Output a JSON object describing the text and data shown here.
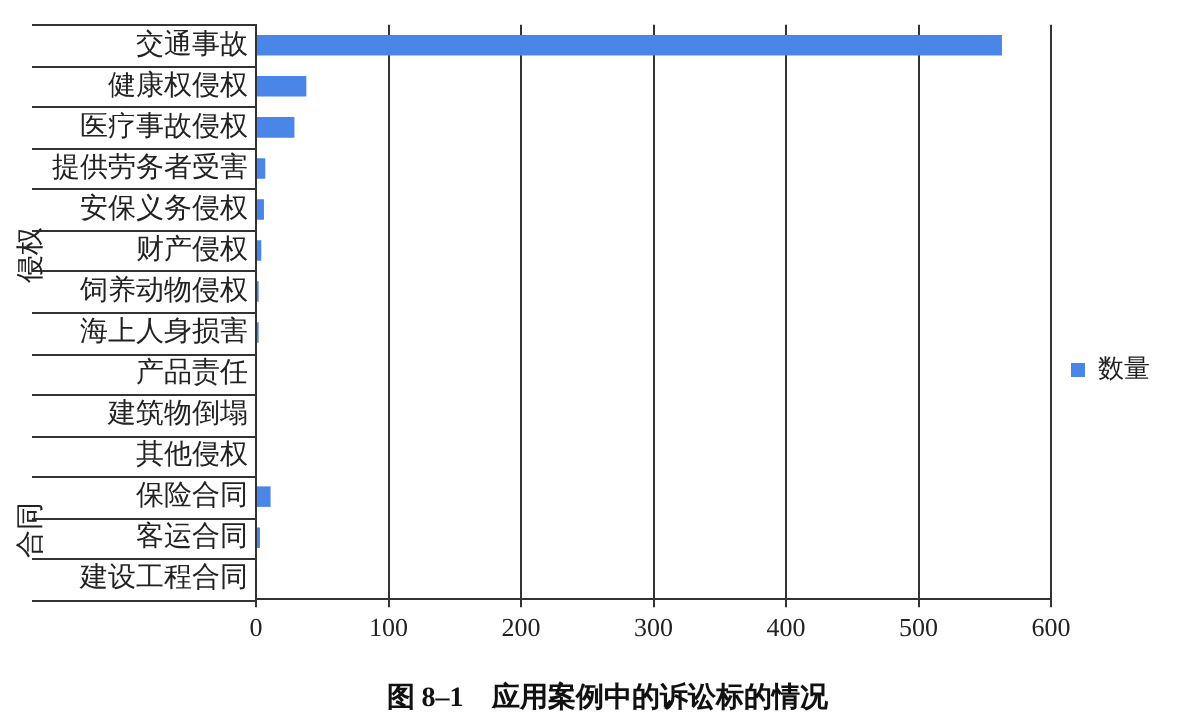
{
  "chart_data": {
    "type": "bar",
    "orientation": "horizontal",
    "title": "图 8–1　应用案例中的诉讼标的情况",
    "categories": [
      "交通事故",
      "健康权侵权",
      "医疗事故侵权",
      "提供劳务者受害",
      "安保义务侵权",
      "财产侵权",
      "饲养动物侵权",
      "海上人身损害",
      "产品责任",
      "建筑物倒塌",
      "其他侵权",
      "保险合同",
      "客运合同",
      "建设工程合同"
    ],
    "series": [
      {
        "name": "数量",
        "color": "#4a86e8",
        "values": [
          563,
          38,
          29,
          7,
          6,
          4,
          2,
          2,
          0,
          0,
          0,
          11,
          3,
          0
        ]
      }
    ],
    "xlim": [
      0,
      600
    ],
    "xticks": [
      0,
      100,
      200,
      300,
      400,
      500,
      600
    ],
    "grid": "x",
    "legend": "right",
    "annotations": [
      "侵权",
      "合同"
    ]
  }
}
